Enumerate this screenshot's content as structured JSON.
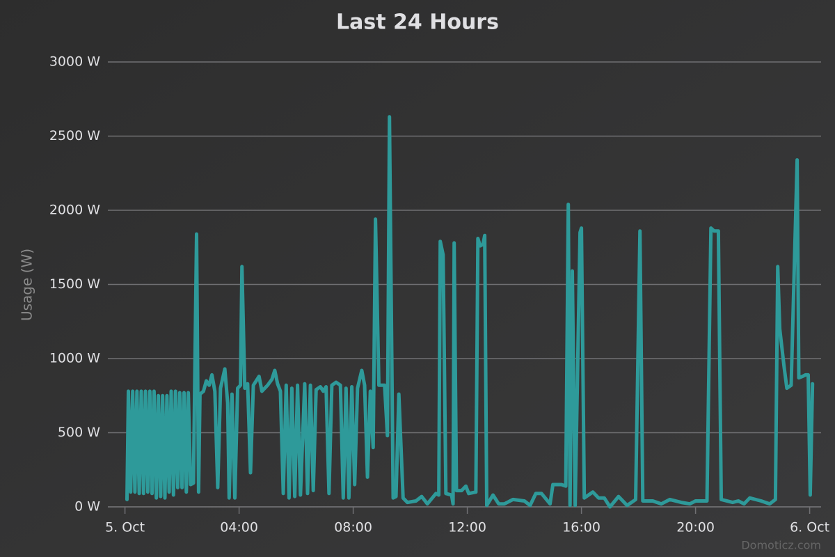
{
  "chart_data": {
    "type": "line",
    "title": "Last 24 Hours",
    "y_label": "Usage (W)",
    "credits": "Domoticz.com",
    "color": "#2e9a9a",
    "grid": true,
    "xlim": [
      -0.6,
      24.4
    ],
    "ylim": [
      0,
      3000
    ],
    "xticks": [
      {
        "value": 0,
        "label": "5. Oct"
      },
      {
        "value": 4,
        "label": "04:00"
      },
      {
        "value": 8,
        "label": "08:00"
      },
      {
        "value": 12,
        "label": "12:00"
      },
      {
        "value": 16,
        "label": "16:00"
      },
      {
        "value": 20,
        "label": "20:00"
      },
      {
        "value": 24,
        "label": "6. Oct"
      }
    ],
    "yticks": [
      {
        "value": 0,
        "label": "0 W"
      },
      {
        "value": 500,
        "label": "500 W"
      },
      {
        "value": 1000,
        "label": "1000 W"
      },
      {
        "value": 1500,
        "label": "1500 W"
      },
      {
        "value": 2000,
        "label": "2000 W"
      },
      {
        "value": 2500,
        "label": "2500 W"
      },
      {
        "value": 3000,
        "label": "3000 W"
      }
    ],
    "x": [
      0.07,
      0.12,
      0.2,
      0.27,
      0.35,
      0.42,
      0.5,
      0.57,
      0.65,
      0.72,
      0.8,
      0.87,
      0.95,
      1.02,
      1.1,
      1.17,
      1.25,
      1.32,
      1.4,
      1.47,
      1.55,
      1.62,
      1.7,
      1.77,
      1.85,
      1.92,
      2.0,
      2.07,
      2.15,
      2.22,
      2.3,
      2.4,
      2.51,
      2.58,
      2.63,
      2.75,
      2.85,
      2.95,
      3.05,
      3.15,
      3.25,
      3.35,
      3.5,
      3.6,
      3.65,
      3.75,
      3.85,
      3.95,
      4.05,
      4.1,
      4.2,
      4.3,
      4.4,
      4.5,
      4.7,
      4.8,
      5.0,
      5.15,
      5.25,
      5.35,
      5.45,
      5.55,
      5.65,
      5.75,
      5.85,
      5.95,
      6.05,
      6.15,
      6.3,
      6.4,
      6.5,
      6.6,
      6.7,
      6.85,
      6.95,
      7.05,
      7.15,
      7.25,
      7.4,
      7.55,
      7.65,
      7.75,
      7.85,
      7.95,
      8.05,
      8.15,
      8.3,
      8.4,
      8.5,
      8.6,
      8.7,
      8.78,
      8.9,
      9.1,
      9.2,
      9.27,
      9.4,
      9.5,
      9.6,
      9.75,
      9.9,
      10.2,
      10.4,
      10.6,
      10.9,
      11.0,
      11.05,
      11.15,
      11.25,
      11.45,
      11.5,
      11.54,
      11.62,
      11.8,
      11.95,
      12.05,
      12.3,
      12.37,
      12.45,
      12.55,
      12.61,
      12.68,
      12.9,
      13.1,
      13.3,
      13.6,
      14.0,
      14.2,
      14.4,
      14.6,
      14.9,
      15.0,
      15.3,
      15.45,
      15.54,
      15.6,
      15.68,
      15.78,
      15.95,
      16.0,
      16.1,
      16.4,
      16.6,
      16.8,
      17.0,
      17.3,
      17.6,
      17.9,
      18.05,
      18.15,
      18.5,
      18.8,
      19.1,
      19.5,
      19.8,
      20.0,
      20.4,
      20.54,
      20.65,
      20.8,
      20.9,
      21.3,
      21.5,
      21.7,
      21.9,
      22.3,
      22.6,
      22.8,
      22.88,
      22.95,
      23.1,
      23.2,
      23.35,
      23.56,
      23.62,
      23.75,
      23.85,
      23.95,
      24.02,
      24.1
    ],
    "values": [
      50,
      780,
      100,
      780,
      100,
      780,
      90,
      780,
      90,
      780,
      100,
      780,
      90,
      780,
      60,
      750,
      70,
      750,
      60,
      750,
      100,
      780,
      80,
      780,
      130,
      770,
      130,
      770,
      100,
      770,
      150,
      160,
      1840,
      100,
      760,
      780,
      850,
      820,
      890,
      780,
      130,
      800,
      930,
      700,
      60,
      760,
      60,
      800,
      820,
      1620,
      800,
      830,
      230,
      820,
      880,
      780,
      820,
      860,
      920,
      830,
      780,
      90,
      820,
      60,
      800,
      70,
      820,
      80,
      830,
      90,
      820,
      110,
      790,
      810,
      780,
      810,
      90,
      820,
      840,
      820,
      60,
      800,
      60,
      810,
      150,
      800,
      920,
      820,
      200,
      780,
      400,
      1940,
      820,
      820,
      480,
      2630,
      60,
      70,
      760,
      60,
      30,
      40,
      70,
      20,
      90,
      80,
      1790,
      1700,
      90,
      80,
      20,
      1780,
      110,
      110,
      140,
      90,
      100,
      1810,
      1760,
      1770,
      1830,
      10,
      80,
      20,
      20,
      50,
      40,
      10,
      90,
      90,
      20,
      150,
      150,
      140,
      2040,
      10,
      1590,
      10,
      1850,
      1880,
      60,
      100,
      60,
      60,
      0,
      70,
      10,
      50,
      1860,
      40,
      40,
      20,
      50,
      30,
      20,
      40,
      40,
      1880,
      1860,
      1860,
      50,
      30,
      40,
      20,
      60,
      40,
      20,
      50,
      1620,
      1200,
      950,
      800,
      820,
      2340,
      870,
      880,
      890,
      890,
      80,
      830
    ]
  }
}
